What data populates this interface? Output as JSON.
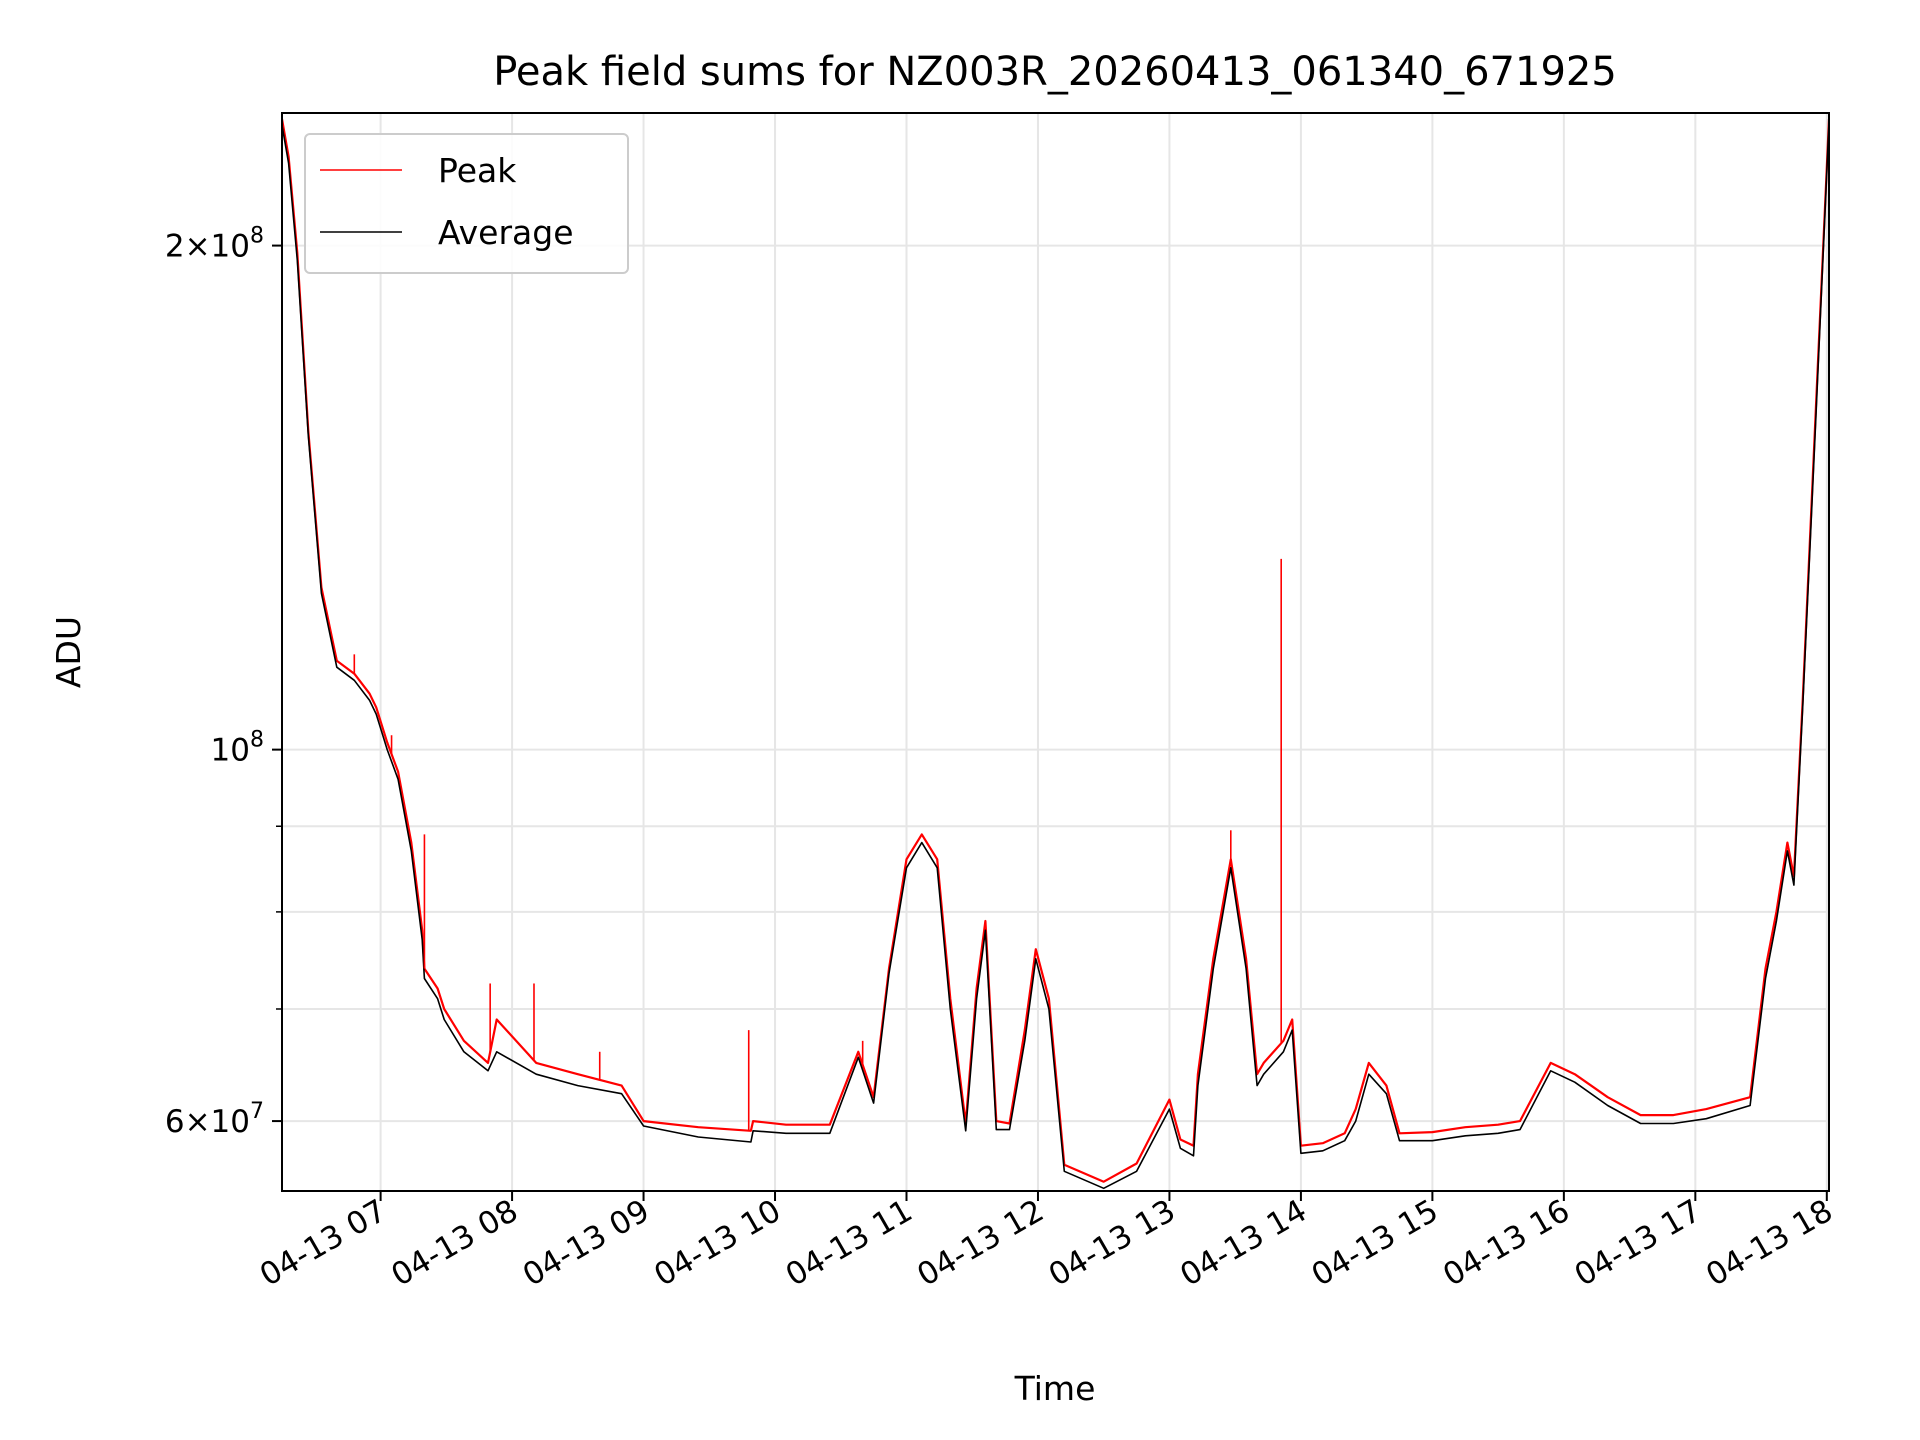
{
  "chart_data": {
    "type": "line",
    "title": "Peak field sums for NZ003R_20260413_061340_671925",
    "xlabel": "Time",
    "ylabel": "ADU",
    "y_scale": "log",
    "ylim": [
      54500000,
      240000000
    ],
    "xlim": [
      "2026-04-13 06:15",
      "2026-04-13 18:01"
    ],
    "x_ticks": [
      {
        "t": "2026-04-13 07:00",
        "label": "04-13 07"
      },
      {
        "t": "2026-04-13 08:00",
        "label": "04-13 08"
      },
      {
        "t": "2026-04-13 09:00",
        "label": "04-13 09"
      },
      {
        "t": "2026-04-13 10:00",
        "label": "04-13 10"
      },
      {
        "t": "2026-04-13 11:00",
        "label": "04-13 11"
      },
      {
        "t": "2026-04-13 12:00",
        "label": "04-13 12"
      },
      {
        "t": "2026-04-13 13:00",
        "label": "04-13 13"
      },
      {
        "t": "2026-04-13 14:00",
        "label": "04-13 14"
      },
      {
        "t": "2026-04-13 15:00",
        "label": "04-13 15"
      },
      {
        "t": "2026-04-13 16:00",
        "label": "04-13 16"
      },
      {
        "t": "2026-04-13 17:00",
        "label": "04-13 17"
      },
      {
        "t": "2026-04-13 18:00",
        "label": "04-13 18"
      }
    ],
    "y_major_ticks": [
      {
        "v": 60000000,
        "base": "6×10",
        "exp": "7"
      },
      {
        "v": 100000000,
        "base": "10",
        "exp": "8"
      },
      {
        "v": 200000000,
        "base": "2×10",
        "exp": "8"
      }
    ],
    "y_minor_ticks": [
      70000000,
      80000000,
      90000000
    ],
    "grid": true,
    "legend_position": "upper-left",
    "series": [
      {
        "name": "Peak",
        "color": "#ff0000",
        "x": [
          "2026-04-13 06:15",
          "2026-04-13 06:18",
          "2026-04-13 06:22",
          "2026-04-13 06:27",
          "2026-04-13 06:33",
          "2026-04-13 06:40",
          "2026-04-13 06:48",
          "2026-04-13 06:55",
          "2026-04-13 06:58",
          "2026-04-13 07:03",
          "2026-04-13 07:08",
          "2026-04-13 07:14",
          "2026-04-13 07:19",
          "2026-04-13 07:20",
          "2026-04-13 07:26",
          "2026-04-13 07:29",
          "2026-04-13 07:38",
          "2026-04-13 07:49",
          "2026-04-13 07:53",
          "2026-04-13 08:11",
          "2026-04-13 08:30",
          "2026-04-13 08:50",
          "2026-04-13 09:00",
          "2026-04-13 09:25",
          "2026-04-13 09:49",
          "2026-04-13 09:50",
          "2026-04-13 10:05",
          "2026-04-13 10:25",
          "2026-04-13 10:38",
          "2026-04-13 10:45",
          "2026-04-13 10:52",
          "2026-04-13 11:00",
          "2026-04-13 11:07",
          "2026-04-13 11:14",
          "2026-04-13 11:20",
          "2026-04-13 11:27",
          "2026-04-13 11:32",
          "2026-04-13 11:36",
          "2026-04-13 11:41",
          "2026-04-13 11:47",
          "2026-04-13 11:54",
          "2026-04-13 11:59",
          "2026-04-13 12:05",
          "2026-04-13 12:12",
          "2026-04-13 12:30",
          "2026-04-13 12:45",
          "2026-04-13 13:00",
          "2026-04-13 13:05",
          "2026-04-13 13:11",
          "2026-04-13 13:13",
          "2026-04-13 13:20",
          "2026-04-13 13:28",
          "2026-04-13 13:35",
          "2026-04-13 13:40",
          "2026-04-13 13:43",
          "2026-04-13 13:52",
          "2026-04-13 13:56",
          "2026-04-13 14:00",
          "2026-04-13 14:10",
          "2026-04-13 14:20",
          "2026-04-13 14:25",
          "2026-04-13 14:31",
          "2026-04-13 14:39",
          "2026-04-13 14:45",
          "2026-04-13 15:00",
          "2026-04-13 15:15",
          "2026-04-13 15:30",
          "2026-04-13 15:40",
          "2026-04-13 15:54",
          "2026-04-13 16:05",
          "2026-04-13 16:20",
          "2026-04-13 16:35",
          "2026-04-13 16:50",
          "2026-04-13 17:05",
          "2026-04-13 17:25",
          "2026-04-13 17:32",
          "2026-04-13 17:37",
          "2026-04-13 17:42",
          "2026-04-13 17:45",
          "2026-04-13 17:49",
          "2026-04-13 17:55",
          "2026-04-13 18:01"
        ],
        "y": [
          238000000,
          226000000,
          198000000,
          155000000,
          125000000,
          113000000,
          111000000,
          108000000,
          106000000,
          101000000,
          97000000,
          88000000,
          78000000,
          74000000,
          72000000,
          70000000,
          67000000,
          65000000,
          69000000,
          65000000,
          64000000,
          63000000,
          60000000,
          59500000,
          59200000,
          60000000,
          59700000,
          59700000,
          66000000,
          62000000,
          74000000,
          86000000,
          89000000,
          86000000,
          71000000,
          59800000,
          72000000,
          79000000,
          60000000,
          59800000,
          68000000,
          76000000,
          71000000,
          56500000,
          55200000,
          56600000,
          61800000,
          58500000,
          58000000,
          64000000,
          75000000,
          86000000,
          75000000,
          64000000,
          65000000,
          67000000,
          69000000,
          58000000,
          58200000,
          59000000,
          61000000,
          65000000,
          63000000,
          59000000,
          59100000,
          59500000,
          59700000,
          60000000,
          65000000,
          64000000,
          62000000,
          60500000,
          60500000,
          61000000,
          62000000,
          74000000,
          80000000,
          88000000,
          84000000,
          107000000,
          160000000,
          238000000
        ]
      },
      {
        "name": "Average",
        "color": "#000000",
        "x": [
          "2026-04-13 06:15",
          "2026-04-13 06:18",
          "2026-04-13 06:22",
          "2026-04-13 06:27",
          "2026-04-13 06:33",
          "2026-04-13 06:40",
          "2026-04-13 06:48",
          "2026-04-13 06:55",
          "2026-04-13 06:58",
          "2026-04-13 07:03",
          "2026-04-13 07:08",
          "2026-04-13 07:14",
          "2026-04-13 07:19",
          "2026-04-13 07:20",
          "2026-04-13 07:26",
          "2026-04-13 07:29",
          "2026-04-13 07:38",
          "2026-04-13 07:49",
          "2026-04-13 07:53",
          "2026-04-13 08:11",
          "2026-04-13 08:30",
          "2026-04-13 08:50",
          "2026-04-13 09:00",
          "2026-04-13 09:25",
          "2026-04-13 09:49",
          "2026-04-13 09:50",
          "2026-04-13 10:05",
          "2026-04-13 10:25",
          "2026-04-13 10:38",
          "2026-04-13 10:45",
          "2026-04-13 10:52",
          "2026-04-13 11:00",
          "2026-04-13 11:07",
          "2026-04-13 11:14",
          "2026-04-13 11:20",
          "2026-04-13 11:27",
          "2026-04-13 11:32",
          "2026-04-13 11:36",
          "2026-04-13 11:41",
          "2026-04-13 11:47",
          "2026-04-13 11:54",
          "2026-04-13 11:59",
          "2026-04-13 12:05",
          "2026-04-13 12:12",
          "2026-04-13 12:30",
          "2026-04-13 12:45",
          "2026-04-13 13:00",
          "2026-04-13 13:05",
          "2026-04-13 13:11",
          "2026-04-13 13:13",
          "2026-04-13 13:20",
          "2026-04-13 13:28",
          "2026-04-13 13:35",
          "2026-04-13 13:40",
          "2026-04-13 13:43",
          "2026-04-13 13:52",
          "2026-04-13 13:56",
          "2026-04-13 14:00",
          "2026-04-13 14:10",
          "2026-04-13 14:20",
          "2026-04-13 14:25",
          "2026-04-13 14:31",
          "2026-04-13 14:39",
          "2026-04-13 14:45",
          "2026-04-13 15:00",
          "2026-04-13 15:15",
          "2026-04-13 15:30",
          "2026-04-13 15:40",
          "2026-04-13 15:54",
          "2026-04-13 16:05",
          "2026-04-13 16:20",
          "2026-04-13 16:35",
          "2026-04-13 16:50",
          "2026-04-13 17:05",
          "2026-04-13 17:25",
          "2026-04-13 17:32",
          "2026-04-13 17:37",
          "2026-04-13 17:42",
          "2026-04-13 17:45",
          "2026-04-13 17:49",
          "2026-04-13 17:55",
          "2026-04-13 18:01"
        ],
        "y": [
          236000000,
          224000000,
          196000000,
          154000000,
          124000000,
          112000000,
          110000000,
          107000000,
          105000000,
          100000000,
          96000000,
          87000000,
          77000000,
          73000000,
          71000000,
          69000000,
          66000000,
          64300000,
          66000000,
          64000000,
          63000000,
          62300000,
          59600000,
          58700000,
          58300000,
          59200000,
          59000000,
          59000000,
          65500000,
          61500000,
          73500000,
          85000000,
          88000000,
          85000000,
          70000000,
          59200000,
          71000000,
          78000000,
          59300000,
          59300000,
          67000000,
          75000000,
          70000000,
          56000000,
          54700000,
          56000000,
          61000000,
          57800000,
          57200000,
          63000000,
          74000000,
          85000000,
          74000000,
          63000000,
          64000000,
          66000000,
          68000000,
          57400000,
          57600000,
          58400000,
          60000000,
          64000000,
          62300000,
          58400000,
          58400000,
          58800000,
          59000000,
          59300000,
          64300000,
          63300000,
          61300000,
          59800000,
          59800000,
          60200000,
          61300000,
          73000000,
          79000000,
          87000000,
          83000000,
          106000000,
          158000000,
          237000000
        ]
      }
    ],
    "spikes": [
      {
        "series": "Peak",
        "t": "2026-04-13 06:48",
        "y": 114000000
      },
      {
        "series": "Peak",
        "t": "2026-04-13 07:05",
        "y": 102000000
      },
      {
        "series": "Peak",
        "t": "2026-04-13 07:20",
        "y": 89000000
      },
      {
        "series": "Peak",
        "t": "2026-04-13 07:50",
        "y": 72500000
      },
      {
        "series": "Peak",
        "t": "2026-04-13 08:10",
        "y": 72500000
      },
      {
        "series": "Peak",
        "t": "2026-04-13 08:40",
        "y": 66000000
      },
      {
        "series": "Peak",
        "t": "2026-04-13 09:48",
        "y": 68000000
      },
      {
        "series": "Peak",
        "t": "2026-04-13 10:40",
        "y": 67000000
      },
      {
        "series": "Peak",
        "t": "2026-04-13 13:28",
        "y": 89500000
      },
      {
        "series": "Peak",
        "t": "2026-04-13 13:51",
        "y": 130000000
      }
    ]
  }
}
